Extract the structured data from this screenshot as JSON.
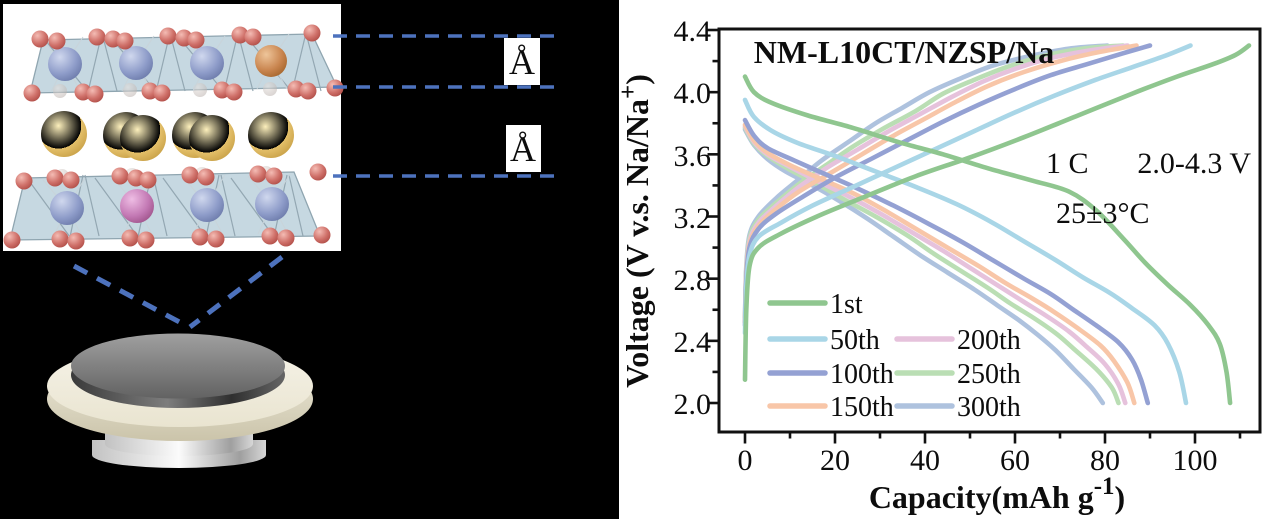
{
  "figure": {
    "left": {
      "angstrom_top": "Å",
      "angstrom_bottom": "Å"
    },
    "chart": {
      "title": "NM-L10CT/NZSP/Na",
      "ann_rate_left": "1 C",
      "ann_rate_right": "2.0-4.3 V",
      "ann_temp": "25±3°C",
      "x_title_main": "Capacity(mAh g",
      "x_title_sup": "-1",
      "x_title_close": ")",
      "y_title_main": "Voltage (V v.s. Na/Na",
      "y_title_sup": "+",
      "y_title_close": ")"
    }
  },
  "chart_data": {
    "type": "line",
    "title": "NM-L10CT/NZSP/Na",
    "xlabel": "Capacity (mAh g⁻¹)",
    "ylabel": "Voltage (V v.s. Na/Na⁺)",
    "xlim": [
      -6,
      114.5
    ],
    "ylim": [
      1.8,
      4.4
    ],
    "x_tick_labels": [
      "0",
      "20",
      "40",
      "60",
      "80",
      "100"
    ],
    "y_tick_labels": [
      "4.4",
      "4.0",
      "3.6",
      "3.2",
      "2.8",
      "2.4",
      "2.0"
    ],
    "x_tick_values": [
      0,
      20,
      40,
      60,
      80,
      100
    ],
    "y_tick_values": [
      4.4,
      4.0,
      3.6,
      3.2,
      2.8,
      2.4,
      2.0
    ],
    "grid": false,
    "legend_position": "lower-left",
    "annotations": [
      "1 C  2.0-4.3 V",
      "25±3°C"
    ],
    "units": {
      "x": "mAh g-1",
      "y": "V vs Na/Na+"
    },
    "series": [
      {
        "name": "1st",
        "color": "#8FC68F",
        "charge_capacity": 112,
        "discharge_capacity": 107.8,
        "charge": [
          [
            0,
            2.15
          ],
          [
            0.3,
            2.6
          ],
          [
            1,
            2.88
          ],
          [
            3,
            3.0
          ],
          [
            8,
            3.09
          ],
          [
            16,
            3.2
          ],
          [
            26,
            3.32
          ],
          [
            38,
            3.46
          ],
          [
            50,
            3.58
          ],
          [
            62,
            3.71
          ],
          [
            74,
            3.85
          ],
          [
            86,
            3.99
          ],
          [
            96,
            4.1
          ],
          [
            104,
            4.18
          ],
          [
            109,
            4.24
          ],
          [
            112,
            4.3
          ]
        ],
        "discharge": [
          [
            0,
            4.1
          ],
          [
            2,
            4.0
          ],
          [
            6,
            3.93
          ],
          [
            14,
            3.85
          ],
          [
            24,
            3.77
          ],
          [
            34,
            3.68
          ],
          [
            44,
            3.6
          ],
          [
            54,
            3.51
          ],
          [
            64,
            3.43
          ],
          [
            72,
            3.36
          ],
          [
            78,
            3.24
          ],
          [
            84,
            3.06
          ],
          [
            89,
            2.9
          ],
          [
            94,
            2.76
          ],
          [
            99,
            2.63
          ],
          [
            103,
            2.5
          ],
          [
            105.5,
            2.38
          ],
          [
            107,
            2.2
          ],
          [
            107.8,
            2.0
          ]
        ]
      },
      {
        "name": "50th",
        "color": "#A9D6E7",
        "charge_capacity": 99,
        "discharge_capacity": 98,
        "charge": [
          [
            0,
            2.45
          ],
          [
            0.3,
            2.75
          ],
          [
            1,
            2.95
          ],
          [
            3,
            3.07
          ],
          [
            8,
            3.16
          ],
          [
            15,
            3.27
          ],
          [
            24,
            3.39
          ],
          [
            33,
            3.51
          ],
          [
            42,
            3.63
          ],
          [
            51,
            3.75
          ],
          [
            60,
            3.87
          ],
          [
            69,
            3.98
          ],
          [
            78,
            4.08
          ],
          [
            86,
            4.16
          ],
          [
            93,
            4.23
          ],
          [
            99,
            4.3
          ]
        ],
        "discharge": [
          [
            0,
            3.95
          ],
          [
            2,
            3.84
          ],
          [
            6,
            3.75
          ],
          [
            12,
            3.67
          ],
          [
            20,
            3.59
          ],
          [
            29,
            3.49
          ],
          [
            38,
            3.39
          ],
          [
            47,
            3.28
          ],
          [
            55,
            3.16
          ],
          [
            62,
            3.04
          ],
          [
            69,
            2.92
          ],
          [
            75,
            2.81
          ],
          [
            81,
            2.71
          ],
          [
            86,
            2.61
          ],
          [
            91,
            2.5
          ],
          [
            94,
            2.38
          ],
          [
            96.5,
            2.2
          ],
          [
            98,
            2.0
          ]
        ]
      },
      {
        "name": "100th",
        "color": "#94A1D3",
        "charge_capacity": 90,
        "discharge_capacity": 89.5,
        "charge": [
          [
            0,
            2.5
          ],
          [
            0.3,
            2.8
          ],
          [
            1,
            3.0
          ],
          [
            3,
            3.12
          ],
          [
            7,
            3.22
          ],
          [
            13,
            3.33
          ],
          [
            20,
            3.45
          ],
          [
            28,
            3.57
          ],
          [
            36,
            3.69
          ],
          [
            44,
            3.81
          ],
          [
            52,
            3.92
          ],
          [
            60,
            4.02
          ],
          [
            68,
            4.11
          ],
          [
            76,
            4.18
          ],
          [
            84,
            4.25
          ],
          [
            90,
            4.3
          ]
        ],
        "discharge": [
          [
            0,
            3.82
          ],
          [
            2,
            3.72
          ],
          [
            5,
            3.64
          ],
          [
            11,
            3.56
          ],
          [
            18,
            3.47
          ],
          [
            25,
            3.38
          ],
          [
            33,
            3.27
          ],
          [
            41,
            3.15
          ],
          [
            48,
            3.04
          ],
          [
            55,
            2.92
          ],
          [
            62,
            2.8
          ],
          [
            68,
            2.7
          ],
          [
            73,
            2.6
          ],
          [
            78,
            2.5
          ],
          [
            83,
            2.39
          ],
          [
            86,
            2.28
          ],
          [
            88,
            2.15
          ],
          [
            89.5,
            2.0
          ]
        ]
      },
      {
        "name": "150th",
        "color": "#F8C6A8",
        "charge_capacity": 87,
        "discharge_capacity": 86.5,
        "charge": [
          [
            0,
            2.52
          ],
          [
            0.3,
            2.82
          ],
          [
            1,
            3.02
          ],
          [
            3,
            3.14
          ],
          [
            7,
            3.25
          ],
          [
            12,
            3.36
          ],
          [
            19,
            3.48
          ],
          [
            26,
            3.6
          ],
          [
            33,
            3.72
          ],
          [
            40,
            3.83
          ],
          [
            47,
            3.94
          ],
          [
            54,
            4.04
          ],
          [
            62,
            4.13
          ],
          [
            70,
            4.2
          ],
          [
            79,
            4.26
          ],
          [
            87,
            4.3
          ]
        ],
        "discharge": [
          [
            0,
            3.79
          ],
          [
            2,
            3.69
          ],
          [
            5,
            3.61
          ],
          [
            10,
            3.53
          ],
          [
            17,
            3.44
          ],
          [
            24,
            3.35
          ],
          [
            31,
            3.24
          ],
          [
            38,
            3.12
          ],
          [
            45,
            3.0
          ],
          [
            52,
            2.88
          ],
          [
            58,
            2.77
          ],
          [
            64,
            2.67
          ],
          [
            69,
            2.58
          ],
          [
            74,
            2.48
          ],
          [
            79,
            2.37
          ],
          [
            82,
            2.27
          ],
          [
            85,
            2.13
          ],
          [
            86.5,
            2.0
          ]
        ]
      },
      {
        "name": "200th",
        "color": "#E6C2DC",
        "charge_capacity": 85,
        "discharge_capacity": 84.5,
        "charge": [
          [
            0,
            2.52
          ],
          [
            0.3,
            2.84
          ],
          [
            1,
            3.04
          ],
          [
            3,
            3.16
          ],
          [
            7,
            3.27
          ],
          [
            12,
            3.39
          ],
          [
            18,
            3.51
          ],
          [
            25,
            3.63
          ],
          [
            32,
            3.75
          ],
          [
            39,
            3.86
          ],
          [
            46,
            3.97
          ],
          [
            53,
            4.07
          ],
          [
            60,
            4.15
          ],
          [
            68,
            4.22
          ],
          [
            77,
            4.27
          ],
          [
            85,
            4.3
          ]
        ],
        "discharge": [
          [
            0,
            3.78
          ],
          [
            2,
            3.68
          ],
          [
            5,
            3.6
          ],
          [
            10,
            3.52
          ],
          [
            16,
            3.43
          ],
          [
            23,
            3.33
          ],
          [
            30,
            3.22
          ],
          [
            37,
            3.1
          ],
          [
            44,
            2.98
          ],
          [
            50,
            2.87
          ],
          [
            56,
            2.76
          ],
          [
            62,
            2.65
          ],
          [
            67,
            2.56
          ],
          [
            72,
            2.46
          ],
          [
            76,
            2.36
          ],
          [
            80,
            2.25
          ],
          [
            83,
            2.12
          ],
          [
            84.5,
            2.0
          ]
        ]
      },
      {
        "name": "250th",
        "color": "#BADEB4",
        "charge_capacity": 84,
        "discharge_capacity": 83,
        "charge": [
          [
            0,
            2.55
          ],
          [
            0.3,
            2.86
          ],
          [
            1,
            3.06
          ],
          [
            3,
            3.18
          ],
          [
            7,
            3.29
          ],
          [
            12,
            3.41
          ],
          [
            18,
            3.53
          ],
          [
            24,
            3.65
          ],
          [
            31,
            3.77
          ],
          [
            38,
            3.88
          ],
          [
            44,
            3.99
          ],
          [
            51,
            4.08
          ],
          [
            58,
            4.16
          ],
          [
            66,
            4.23
          ],
          [
            75,
            4.28
          ],
          [
            84,
            4.3
          ]
        ],
        "discharge": [
          [
            0,
            3.77
          ],
          [
            2,
            3.67
          ],
          [
            5,
            3.59
          ],
          [
            10,
            3.5
          ],
          [
            16,
            3.41
          ],
          [
            22,
            3.31
          ],
          [
            29,
            3.2
          ],
          [
            36,
            3.08
          ],
          [
            42,
            2.96
          ],
          [
            48,
            2.85
          ],
          [
            54,
            2.74
          ],
          [
            59,
            2.64
          ],
          [
            64,
            2.55
          ],
          [
            69,
            2.45
          ],
          [
            73,
            2.35
          ],
          [
            78,
            2.22
          ],
          [
            81.5,
            2.1
          ],
          [
            83,
            2.0
          ]
        ]
      },
      {
        "name": "300th",
        "color": "#AEC2DE",
        "charge_capacity": 80.5,
        "discharge_capacity": 79.5,
        "charge": [
          [
            0,
            2.55
          ],
          [
            0.3,
            2.88
          ],
          [
            1,
            3.08
          ],
          [
            3,
            3.2
          ],
          [
            7,
            3.32
          ],
          [
            12,
            3.44
          ],
          [
            17,
            3.56
          ],
          [
            23,
            3.68
          ],
          [
            29,
            3.8
          ],
          [
            35,
            3.9
          ],
          [
            41,
            4.0
          ],
          [
            48,
            4.09
          ],
          [
            55,
            4.17
          ],
          [
            63,
            4.23
          ],
          [
            72,
            4.28
          ],
          [
            80.5,
            4.3
          ]
        ],
        "discharge": [
          [
            0,
            3.76
          ],
          [
            2,
            3.66
          ],
          [
            5,
            3.57
          ],
          [
            9,
            3.49
          ],
          [
            15,
            3.4
          ],
          [
            21,
            3.3
          ],
          [
            27,
            3.19
          ],
          [
            33,
            3.07
          ],
          [
            39,
            2.95
          ],
          [
            45,
            2.84
          ],
          [
            51,
            2.73
          ],
          [
            56,
            2.63
          ],
          [
            61,
            2.53
          ],
          [
            65,
            2.44
          ],
          [
            69,
            2.34
          ],
          [
            73,
            2.22
          ],
          [
            77,
            2.1
          ],
          [
            79.5,
            2.0
          ]
        ]
      }
    ]
  }
}
